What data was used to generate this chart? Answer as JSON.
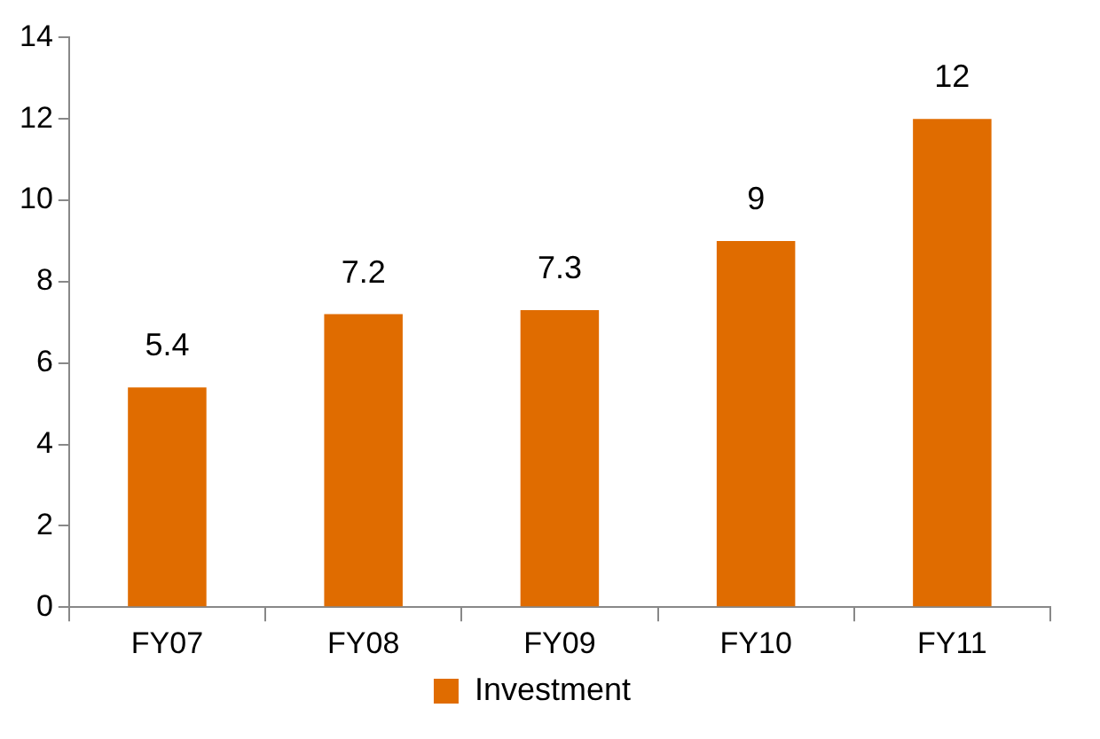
{
  "chart_data": {
    "type": "bar",
    "categories": [
      "FY07",
      "FY08",
      "FY09",
      "FY10",
      "FY11"
    ],
    "series": [
      {
        "name": "Investment",
        "color": "#e06c00",
        "values": [
          5.4,
          7.2,
          7.3,
          9,
          12
        ]
      }
    ],
    "ylim": [
      0,
      14
    ],
    "yticks": [
      0,
      2,
      4,
      6,
      8,
      10,
      12,
      14
    ],
    "grid": false,
    "legend": "bottom",
    "data_labels": true
  }
}
